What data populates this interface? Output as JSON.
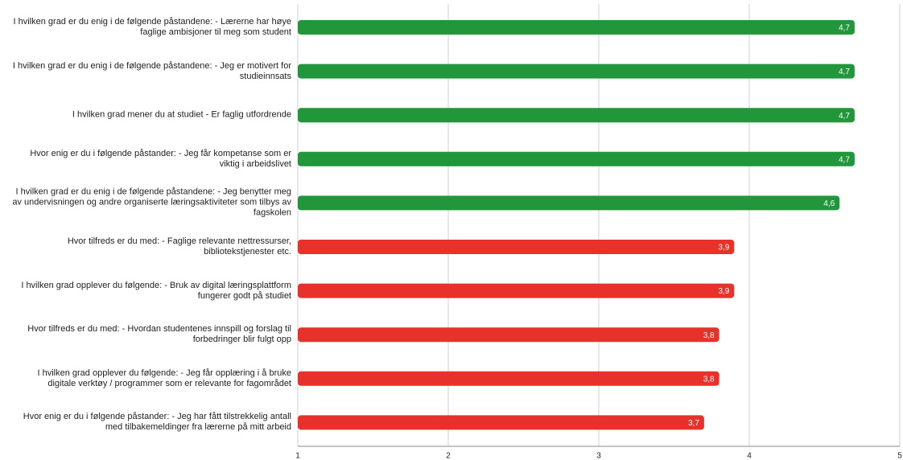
{
  "chart_data": {
    "type": "bar",
    "orientation": "horizontal",
    "categories": [
      "I hvilken grad er du enig i de følgende påstandene: - Lærerne har høye faglige ambisjoner til meg som student",
      "I hvilken grad er du enig i de følgende påstandene: - Jeg er motivert for studieinnsats",
      "I hvilken grad mener du at studiet - Er faglig utfordrende",
      "Hvor enig er du i følgende påstander: - Jeg får kompetanse som er viktig i arbeidslivet",
      "I hvilken grad er du enig i de følgende påstandene: - Jeg benytter meg av undervisningen og andre organiserte læringsaktiviteter som tilbys av fagskolen",
      "Hvor tilfreds er du med: - Faglige relevante nettressurser, bibliotekstjenester etc.",
      "I hvilken grad opplever du følgende: - Bruk av digital læringsplattform fungerer godt på studiet",
      "Hvor tilfreds er du med: - Hvordan studentenes innspill og forslag til forbedringer blir fulgt opp",
      "I hvilken grad opplever du følgende: - Jeg får opplæring i å bruke digitale verktøy / programmer som er relevante for fagområdet",
      "Hvor enig er du i følgende påstander: - Jeg har fått tilstrekkelig antall med tilbakemeldinger fra lærerne på mitt arbeid"
    ],
    "values": [
      4.7,
      4.7,
      4.7,
      4.7,
      4.6,
      3.9,
      3.9,
      3.8,
      3.8,
      3.7
    ],
    "value_labels": [
      "4,7",
      "4,7",
      "4,7",
      "4,7",
      "4,6",
      "3,9",
      "3,9",
      "3,8",
      "3,8",
      "3,7"
    ],
    "colors": [
      "#21963a",
      "#21963a",
      "#21963a",
      "#21963a",
      "#21963a",
      "#e8312a",
      "#e8312a",
      "#e8312a",
      "#e8312a",
      "#e8312a"
    ],
    "xlim": [
      1,
      5
    ],
    "xticks": [
      1,
      2,
      3,
      4,
      5
    ],
    "grid": true
  }
}
